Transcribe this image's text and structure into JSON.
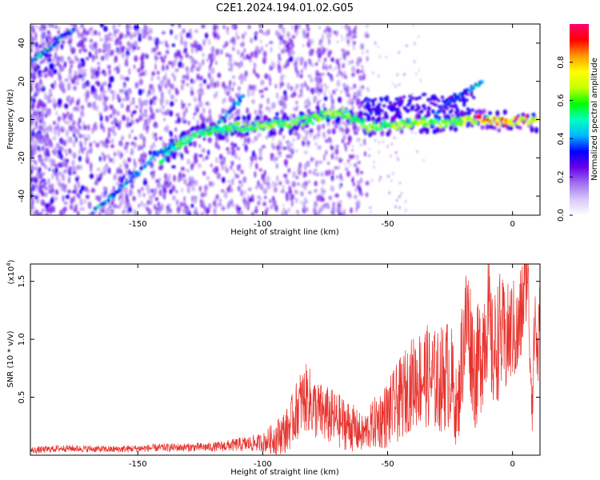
{
  "title": "C2E1.2024.194.01.02.G05",
  "chart_data": [
    {
      "type": "heatmap",
      "xlabel": "Height of straight line (km)",
      "ylabel": "Frequency (Hz)",
      "xlim": [
        -193,
        11
      ],
      "ylim": [
        -50,
        50
      ],
      "xticks": [
        -150,
        -100,
        -50,
        0
      ],
      "yticks": [
        -40,
        -20,
        0,
        20,
        40
      ],
      "colorbar": {
        "label": "Normalized spectral amplitude",
        "range": [
          0.0,
          1.0
        ],
        "ticks": [
          0.0,
          0.2,
          0.4,
          0.6,
          0.8
        ],
        "colors": [
          "#ffffff",
          "#d8c8f8",
          "#a070f0",
          "#6a00e8",
          "#0000ff",
          "#00b8ff",
          "#00ffc0",
          "#00ff00",
          "#c8ff00",
          "#ffff00",
          "#ff9900",
          "#ff0000",
          "#ff0070"
        ]
      },
      "ridge": [
        {
          "x": -141,
          "y": -22
        },
        {
          "x": -135,
          "y": -14
        },
        {
          "x": -128,
          "y": -9
        },
        {
          "x": -120,
          "y": -5
        },
        {
          "x": -110,
          "y": -4
        },
        {
          "x": -100,
          "y": -3
        },
        {
          "x": -90,
          "y": -2
        },
        {
          "x": -80,
          "y": 0
        },
        {
          "x": -75,
          "y": 3
        },
        {
          "x": -68,
          "y": 3
        },
        {
          "x": -62,
          "y": 0
        },
        {
          "x": -58,
          "y": -4
        },
        {
          "x": -50,
          "y": -3
        },
        {
          "x": -42,
          "y": -2
        },
        {
          "x": -35,
          "y": -1
        },
        {
          "x": -28,
          "y": -2
        },
        {
          "x": -20,
          "y": -1
        },
        {
          "x": -12,
          "y": 0
        },
        {
          "x": -5,
          "y": -1
        },
        {
          "x": 0,
          "y": -1
        },
        {
          "x": 5,
          "y": 0
        },
        {
          "x": 10,
          "y": -1
        }
      ],
      "diagonal_tracks": [
        {
          "points": [
            [
              -193,
              30
            ],
            [
              -182,
              41
            ],
            [
              -176,
              47
            ]
          ]
        },
        {
          "points": [
            [
              -168,
              -48
            ],
            [
              -160,
              -40
            ],
            [
              -150,
              -28
            ],
            [
              -143,
              -18
            ],
            [
              -135,
              -12
            ]
          ]
        },
        {
          "points": [
            [
              -118,
              -3
            ],
            [
              -112,
              6
            ],
            [
              -108,
              12
            ]
          ]
        },
        {
          "points": [
            [
              -30,
              4
            ],
            [
              -22,
              12
            ],
            [
              -12,
              20
            ]
          ]
        }
      ]
    },
    {
      "type": "line",
      "xlabel": "Height of straight line (km)",
      "ylabel": "SNR (10 * v/v)",
      "ymultiplier": "(x10",
      "ymultiplier_exp": "4",
      "ymultiplier_close": ")",
      "xlim": [
        -193,
        11
      ],
      "ylim": [
        0,
        16500
      ],
      "xticks": [
        -150,
        -100,
        -50,
        0
      ],
      "yticks": [
        0.5,
        1.0,
        1.5
      ],
      "series": [
        {
          "color": "#e8322d",
          "x": [
            -193,
            -180,
            -160,
            -140,
            -120,
            -110,
            -100,
            -95,
            -90,
            -85,
            -82,
            -80,
            -78,
            -75,
            -70,
            -65,
            -60,
            -58,
            -55,
            -50,
            -45,
            -40,
            -35,
            -30,
            -25,
            -22,
            -20,
            -18,
            -15,
            -12,
            -10,
            -8,
            -5,
            -3,
            0,
            2,
            4,
            5,
            6,
            7,
            8,
            9,
            10,
            11
          ],
          "y": [
            400,
            600,
            500,
            650,
            700,
            900,
            1100,
            1500,
            2200,
            4500,
            5000,
            4200,
            3800,
            3500,
            3000,
            2500,
            1800,
            2200,
            2800,
            3500,
            4800,
            6300,
            6900,
            6300,
            7200,
            3500,
            9500,
            12000,
            7000,
            9500,
            12500,
            8500,
            10500,
            9500,
            11000,
            10000,
            13000,
            14500,
            16500,
            9000,
            5000,
            12500,
            8000,
            12000
          ],
          "amplitude": [
            300,
            300,
            300,
            350,
            400,
            600,
            800,
            1500,
            2000,
            2800,
            3000,
            2800,
            2600,
            2600,
            2400,
            2200,
            1600,
            1800,
            2300,
            3000,
            3600,
            4000,
            4500,
            4500,
            5000,
            3000,
            5500,
            5500,
            5000,
            5500,
            6000,
            5000,
            5500,
            5000,
            4500,
            4500,
            4500,
            4500,
            3500,
            3500,
            3500,
            3500,
            3500,
            3500
          ]
        }
      ]
    }
  ]
}
